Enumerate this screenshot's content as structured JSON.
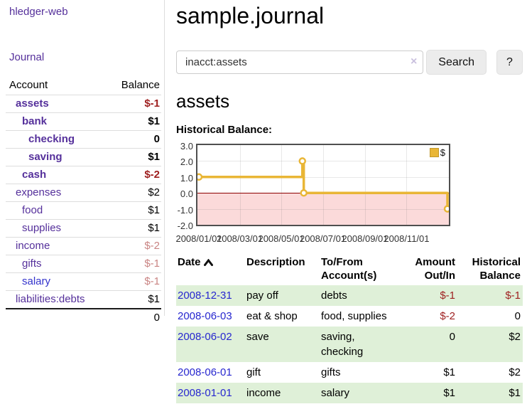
{
  "sidebar": {
    "brand": "hledger-web",
    "nav": {
      "journal": "Journal"
    },
    "accounts_table": {
      "headers": {
        "account": "Account",
        "balance": "Balance"
      },
      "rows": [
        {
          "name": "assets",
          "indent": 0,
          "bold": true,
          "balance": "$-1",
          "neg": "strong"
        },
        {
          "name": "bank",
          "indent": 1,
          "bold": true,
          "balance": "$1"
        },
        {
          "name": "checking",
          "indent": 2,
          "bold": true,
          "balance": "0"
        },
        {
          "name": "saving",
          "indent": 2,
          "bold": true,
          "balance": "$1"
        },
        {
          "name": "cash",
          "indent": 1,
          "bold": true,
          "balance": "$-2",
          "neg": "strong"
        },
        {
          "name": "expenses",
          "indent": 0,
          "bold": false,
          "balance": "$2"
        },
        {
          "name": "food",
          "indent": 1,
          "bold": false,
          "balance": "$1"
        },
        {
          "name": "supplies",
          "indent": 1,
          "bold": false,
          "balance": "$1"
        },
        {
          "name": "income",
          "indent": 0,
          "bold": false,
          "balance": "$-2",
          "neg": "soft"
        },
        {
          "name": "gifts",
          "indent": 1,
          "bold": false,
          "balance": "$-1",
          "neg": "soft"
        },
        {
          "name": "salary",
          "indent": 1,
          "bold": false,
          "balance": "$-1",
          "neg": "soft",
          "link_color": "blue"
        },
        {
          "name": "liabilities:debts",
          "indent": 0,
          "bold": false,
          "balance": "$1"
        }
      ],
      "total": "0"
    }
  },
  "header": {
    "title": "sample.journal"
  },
  "search": {
    "value": "inacct:assets",
    "clear_icon": "×",
    "button_label": "Search",
    "help_label": "?"
  },
  "account_page": {
    "heading": "assets",
    "chart_title": "Historical Balance:"
  },
  "chart_data": {
    "type": "line",
    "style": "step-after",
    "title": "Historical Balance:",
    "series": [
      {
        "name": "$",
        "color": "#e9b636",
        "points": [
          {
            "date": "2008-01-01",
            "value": 1
          },
          {
            "date": "2008-06-01",
            "value": 2
          },
          {
            "date": "2008-06-03",
            "value": 0
          },
          {
            "date": "2008-12-31",
            "value": -1
          }
        ]
      }
    ],
    "x_range": [
      "2008-01-01",
      "2008-12-31"
    ],
    "ylim": [
      -2,
      3
    ],
    "yticks": [
      {
        "label": "3.0",
        "value": 3
      },
      {
        "label": "2.0",
        "value": 2
      },
      {
        "label": "1.0",
        "value": 1
      },
      {
        "label": "0.0",
        "value": 0
      },
      {
        "label": "-1.0",
        "value": -1
      },
      {
        "label": "-2.0",
        "value": -2
      }
    ],
    "xticks": [
      {
        "label": "2008/01/01",
        "date": "2008-01-01"
      },
      {
        "label": "2008/03/01",
        "date": "2008-03-01"
      },
      {
        "label": "2008/05/01",
        "date": "2008-05-01"
      },
      {
        "label": "2008/07/01",
        "date": "2008-07-01"
      },
      {
        "label": "2008/09/01",
        "date": "2008-09-01"
      },
      {
        "label": "2008/11/01",
        "date": "2008-11-01"
      }
    ],
    "legend": {
      "label": "$",
      "position": "top-right"
    },
    "grid": true,
    "negative_region_color": "#fbdada",
    "zero_line_color": "#8b0000"
  },
  "transactions": {
    "headers": {
      "date": "Date",
      "description": "Description",
      "accounts": "To/From Account(s)",
      "amount": "Amount Out/In",
      "balance": "Historical Balance"
    },
    "sort": {
      "column": "date",
      "direction": "ascending"
    },
    "rows": [
      {
        "date": "2008-12-31",
        "description": "pay off",
        "accounts": "debts",
        "amount": "$-1",
        "amount_neg": true,
        "balance": "$-1",
        "balance_neg": true,
        "shaded": true
      },
      {
        "date": "2008-06-03",
        "description": "eat & shop",
        "accounts": "food, supplies",
        "amount": "$-2",
        "amount_neg": true,
        "balance": "0",
        "balance_neg": false,
        "shaded": false
      },
      {
        "date": "2008-06-02",
        "description": "save",
        "accounts": "saving, checking",
        "amount": "0",
        "amount_neg": false,
        "balance": "$2",
        "balance_neg": false,
        "shaded": true
      },
      {
        "date": "2008-06-01",
        "description": "gift",
        "accounts": "gifts",
        "amount": "$1",
        "amount_neg": false,
        "balance": "$2",
        "balance_neg": false,
        "shaded": false
      },
      {
        "date": "2008-01-01",
        "description": "income",
        "accounts": "salary",
        "amount": "$1",
        "amount_neg": false,
        "balance": "$1",
        "balance_neg": false,
        "shaded": true
      }
    ]
  },
  "colors": {
    "link_purple": "#55309b",
    "link_blue": "#3333cc",
    "negative_strong": "#9e1f1f",
    "negative_soft": "#c98483",
    "row_shade_green": "#dff0d8",
    "chart_gold": "#e9b636",
    "chart_negative_region": "#fbdada",
    "chart_zero_line": "#8b0000"
  }
}
